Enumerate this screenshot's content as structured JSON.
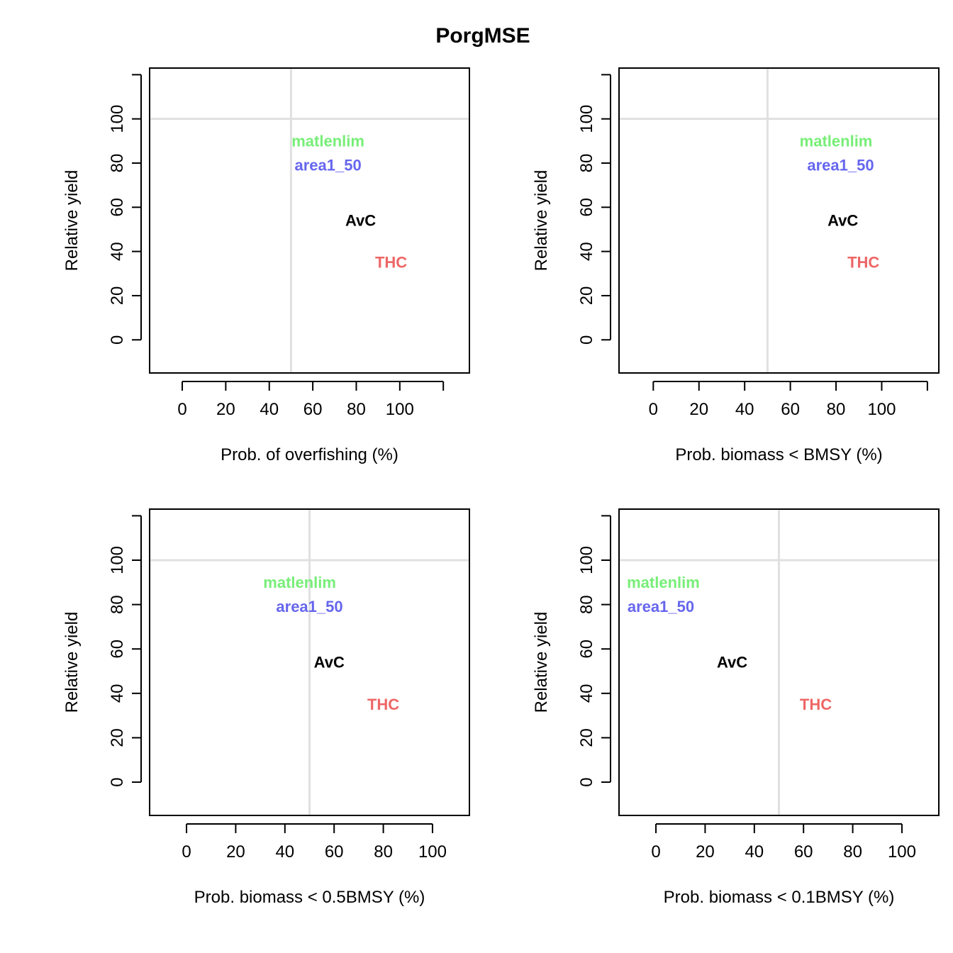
{
  "title": "PorgMSE",
  "colors": {
    "matlenlim": "#77ee77",
    "area1_50": "#6666ee",
    "AvC": "#000000",
    "THC": "#ee6666",
    "reference_line": "#e0e0e0",
    "frame": "#000000"
  },
  "chart_data": [
    {
      "type": "scatter",
      "xlabel": "Prob. of overfishing (%)",
      "ylabel": "Relative yield",
      "xlim": [
        -15,
        132
      ],
      "ylim": [
        -15,
        123
      ],
      "xticks": [
        0,
        20,
        40,
        60,
        80,
        100,
        120
      ],
      "xtick_labels": [
        "0",
        "20",
        "40",
        "60",
        "80",
        "100"
      ],
      "yticks": [
        0,
        20,
        40,
        60,
        80,
        100,
        120
      ],
      "ytick_labels": [
        "0",
        "20",
        "40",
        "60",
        "80",
        "100"
      ],
      "ref_x": 50,
      "ref_y": 100,
      "points": [
        {
          "label": "matlenlim",
          "x": 67,
          "y": 90,
          "color": "#77ee77"
        },
        {
          "label": "area1_50",
          "x": 67,
          "y": 79,
          "color": "#6666ee"
        },
        {
          "label": "AvC",
          "x": 82,
          "y": 54,
          "color": "#000000"
        },
        {
          "label": "THC",
          "x": 96,
          "y": 35,
          "color": "#ee6666"
        }
      ]
    },
    {
      "type": "scatter",
      "xlabel": "Prob. biomass < BMSY (%)",
      "ylabel": "Relative yield",
      "xlim": [
        -15,
        125
      ],
      "ylim": [
        -15,
        123
      ],
      "xticks": [
        0,
        20,
        40,
        60,
        80,
        100,
        120
      ],
      "xtick_labels": [
        "0",
        "20",
        "40",
        "60",
        "80",
        "100"
      ],
      "yticks": [
        0,
        20,
        40,
        60,
        80,
        100,
        120
      ],
      "ytick_labels": [
        "0",
        "20",
        "40",
        "60",
        "80",
        "100"
      ],
      "ref_x": 50,
      "ref_y": 100,
      "points": [
        {
          "label": "matlenlim",
          "x": 80,
          "y": 90,
          "color": "#77ee77"
        },
        {
          "label": "area1_50",
          "x": 82,
          "y": 79,
          "color": "#6666ee"
        },
        {
          "label": "AvC",
          "x": 83,
          "y": 54,
          "color": "#000000"
        },
        {
          "label": "THC",
          "x": 92,
          "y": 35,
          "color": "#ee6666"
        }
      ]
    },
    {
      "type": "scatter",
      "xlabel": "Prob. biomass < 0.5BMSY (%)",
      "ylabel": "Relative yield",
      "xlim": [
        -15,
        115
      ],
      "ylim": [
        -15,
        123
      ],
      "xticks": [
        0,
        20,
        40,
        60,
        80,
        100
      ],
      "xtick_labels": [
        "0",
        "20",
        "40",
        "60",
        "80",
        "100"
      ],
      "yticks": [
        0,
        20,
        40,
        60,
        80,
        100,
        120
      ],
      "ytick_labels": [
        "0",
        "20",
        "40",
        "60",
        "80",
        "100"
      ],
      "ref_x": 50,
      "ref_y": 100,
      "points": [
        {
          "label": "matlenlim",
          "x": 46,
          "y": 90,
          "color": "#77ee77"
        },
        {
          "label": "area1_50",
          "x": 50,
          "y": 79,
          "color": "#6666ee"
        },
        {
          "label": "AvC",
          "x": 58,
          "y": 54,
          "color": "#000000"
        },
        {
          "label": "THC",
          "x": 80,
          "y": 35,
          "color": "#ee6666"
        }
      ]
    },
    {
      "type": "scatter",
      "xlabel": "Prob. biomass < 0.1BMSY (%)",
      "ylabel": "Relative yield",
      "xlim": [
        -15,
        115
      ],
      "ylim": [
        -15,
        123
      ],
      "xticks": [
        0,
        20,
        40,
        60,
        80,
        100
      ],
      "xtick_labels": [
        "0",
        "20",
        "40",
        "60",
        "80",
        "100"
      ],
      "yticks": [
        0,
        20,
        40,
        60,
        80,
        100,
        120
      ],
      "ytick_labels": [
        "0",
        "20",
        "40",
        "60",
        "80",
        "100"
      ],
      "ref_x": 50,
      "ref_y": 100,
      "points": [
        {
          "label": "matlenlim",
          "x": 3,
          "y": 90,
          "color": "#77ee77"
        },
        {
          "label": "area1_50",
          "x": 2,
          "y": 79,
          "color": "#6666ee"
        },
        {
          "label": "AvC",
          "x": 31,
          "y": 54,
          "color": "#000000"
        },
        {
          "label": "THC",
          "x": 65,
          "y": 35,
          "color": "#ee6666"
        }
      ]
    }
  ]
}
